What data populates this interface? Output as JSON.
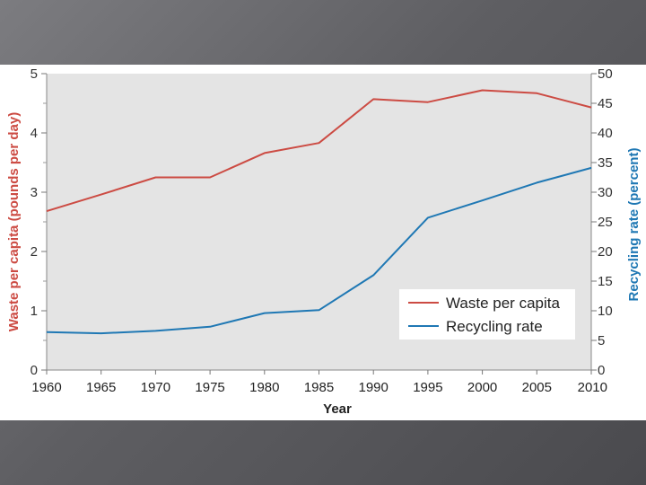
{
  "chart_data": {
    "type": "line",
    "title": "",
    "xlabel": "Year",
    "ylabel_left": "Waste per capita (pounds per day)",
    "ylabel_right": "Recycling rate (percent)",
    "x": [
      1960,
      1965,
      1970,
      1975,
      1980,
      1985,
      1990,
      1995,
      2000,
      2005,
      2010
    ],
    "x_ticks": [
      "1960",
      "1965",
      "1970",
      "1975",
      "1980",
      "1985",
      "1990",
      "1995",
      "2000",
      "2005",
      "2010"
    ],
    "y_left_ticks": [
      "0",
      "1",
      "2",
      "3",
      "4",
      "5"
    ],
    "y_right_ticks": [
      "0",
      "5",
      "10",
      "15",
      "20",
      "25",
      "30",
      "35",
      "40",
      "45",
      "50"
    ],
    "ylim_left": [
      0,
      5
    ],
    "ylim_right": [
      0,
      50
    ],
    "xlim": [
      1960,
      2010
    ],
    "grid": false,
    "legend_position": "bottom-right",
    "series": [
      {
        "name": "Waste per capita",
        "axis": "left",
        "color": "#cc4b43",
        "values": [
          2.68,
          2.96,
          3.25,
          3.25,
          3.66,
          3.83,
          4.57,
          4.52,
          4.72,
          4.67,
          4.43
        ]
      },
      {
        "name": "Recycling rate",
        "axis": "right",
        "color": "#1f78b4",
        "values": [
          6.4,
          6.2,
          6.6,
          7.3,
          9.6,
          10.1,
          16.0,
          25.7,
          28.6,
          31.6,
          34.1
        ]
      }
    ]
  },
  "colors": {
    "left_axis": "#cc4b43",
    "right_axis": "#1f78b4",
    "plot_background": "#e4e4e4"
  }
}
